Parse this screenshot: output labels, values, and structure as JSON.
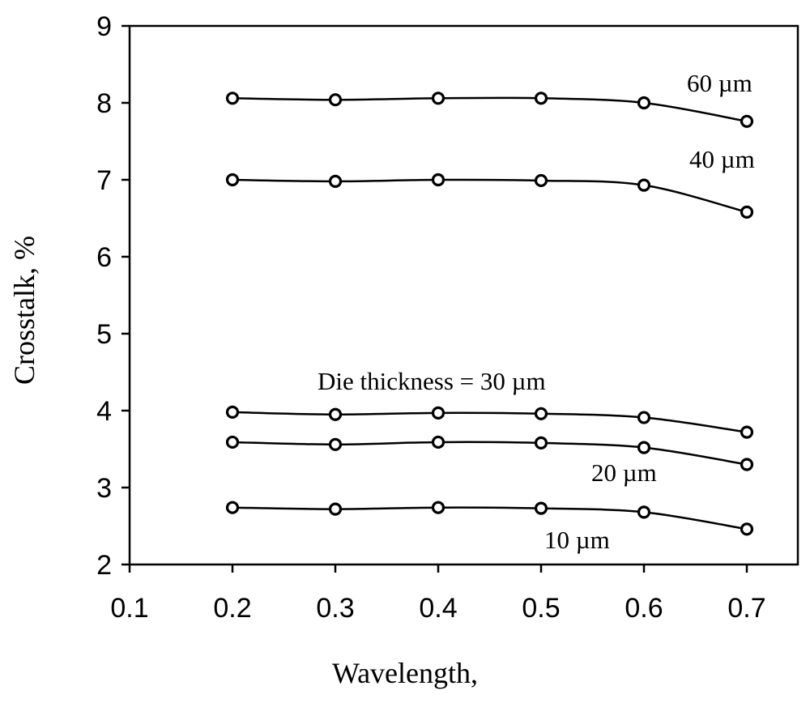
{
  "chart_data": {
    "type": "line",
    "title": "",
    "xlabel": "Wavelength,",
    "ylabel": "Crosstalk, %",
    "xlim": [
      0.1,
      0.75
    ],
    "ylim": [
      2,
      9
    ],
    "xticks": [
      "0.1",
      "0.2",
      "0.3",
      "0.4",
      "0.5",
      "0.6",
      "0.7"
    ],
    "yticks": [
      "2",
      "3",
      "4",
      "5",
      "6",
      "7",
      "8",
      "9"
    ],
    "x": [
      0.2,
      0.3,
      0.4,
      0.5,
      0.6,
      0.7
    ],
    "series": [
      {
        "name": "60 µm",
        "values": [
          8.06,
          8.04,
          8.06,
          8.06,
          8.0,
          7.76
        ]
      },
      {
        "name": "40 µm",
        "values": [
          7.0,
          6.98,
          7.0,
          6.99,
          6.93,
          6.58
        ]
      },
      {
        "name": "Die thickness = 30 µm",
        "values": [
          3.98,
          3.95,
          3.97,
          3.96,
          3.91,
          3.72
        ]
      },
      {
        "name": "20 µm",
        "values": [
          3.59,
          3.56,
          3.59,
          3.58,
          3.52,
          3.3
        ]
      },
      {
        "name": "10 µm",
        "values": [
          2.74,
          2.72,
          2.74,
          2.73,
          2.68,
          2.46
        ]
      }
    ],
    "grid": false,
    "marker": "open-circle"
  }
}
